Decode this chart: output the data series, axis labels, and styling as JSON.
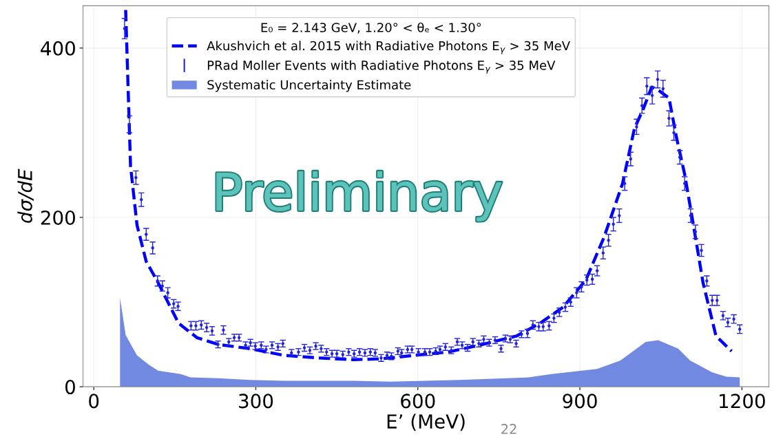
{
  "chart_data": {
    "type": "scatter",
    "xlabel": "E’ (MeV)",
    "ylabel": "dσ/dE",
    "legend_title": "E₀ = 2.143 GeV, 1.20° < θₑ < 1.30°",
    "xlim": [
      -20,
      1250
    ],
    "ylim": [
      0,
      450
    ],
    "xticks": [
      0,
      300,
      600,
      900,
      1200
    ],
    "yticks": [
      0,
      200,
      400
    ],
    "grid": true,
    "legend": "top",
    "series": [
      {
        "name": "Akushvich et al. 2015 with Radiative Photons E$_{γ}$ > 35 MeV",
        "type": "line",
        "color": "#0000ff",
        "line_style": "dashed",
        "marker": "none",
        "x": [
          59,
          68,
          80,
          97,
          119,
          157,
          191,
          230,
          289,
          353,
          417,
          481,
          532,
          592,
          656,
          720,
          783,
          826,
          869,
          911,
          945,
          979,
          1001,
          1018,
          1033,
          1048,
          1065,
          1079,
          1094,
          1111,
          1128,
          1152,
          1181
        ],
        "values": [
          445,
          261,
          191,
          148,
          123,
          75,
          58,
          50,
          45,
          37,
          34,
          32,
          33,
          37,
          41,
          50,
          60,
          75,
          94,
          126,
          177,
          240,
          305,
          329,
          354,
          349,
          341,
          294,
          251,
          188,
          123,
          60,
          42
        ]
      },
      {
        "name": "PRad Moller Events with Radiative Photons E$_{γ}$ > 35 MeV",
        "color": "#2222dd",
        "marker": "circle",
        "x": [
          57,
          66,
          78,
          88,
          97,
          109,
          118,
          127,
          137,
          148,
          156,
          180,
          189,
          199,
          209,
          219,
          230,
          240,
          250,
          260,
          269,
          281,
          290,
          299,
          310,
          319,
          330,
          341,
          350,
          366,
          379,
          390,
          400,
          411,
          421,
          431,
          441,
          450,
          461,
          472,
          482,
          492,
          502,
          512,
          521,
          532,
          543,
          551,
          563,
          570,
          581,
          589,
          601,
          613,
          622,
          633,
          641,
          651,
          662,
          673,
          682,
          692,
          702,
          713,
          722,
          732,
          743,
          754,
          762,
          771,
          782,
          792,
          803,
          813,
          824,
          832,
          843,
          852,
          862,
          873,
          883,
          894,
          903,
          913,
          923,
          932,
          943,
          953,
          962,
          973,
          983,
          994,
          1005,
          1015,
          1024,
          1034,
          1044,
          1054,
          1065,
          1074,
          1085,
          1094,
          1105,
          1114,
          1125,
          1135,
          1145,
          1154,
          1165,
          1174,
          1185,
          1196
        ],
        "values": [
          423,
          310,
          247,
          221,
          180,
          164,
          125,
          119,
          111,
          98,
          95,
          72,
          72,
          73,
          70,
          66,
          50,
          67,
          53,
          58,
          58,
          49,
          52,
          48,
          49,
          44,
          49,
          47,
          51,
          40,
          41,
          46,
          43,
          48,
          45,
          41,
          39,
          39,
          38,
          41,
          39,
          41,
          40,
          41,
          40,
          34,
          37,
          36,
          42,
          40,
          44,
          44,
          41,
          41,
          41,
          42,
          44,
          47,
          43,
          53,
          49,
          46,
          53,
          51,
          56,
          52,
          55,
          45,
          57,
          56,
          51,
          62,
          63,
          73,
          71,
          71,
          72,
          81,
          88,
          94,
          100,
          111,
          118,
          126,
          127,
          137,
          158,
          173,
          192,
          202,
          240,
          269,
          307,
          332,
          355,
          344,
          363,
          352,
          317,
          300,
          271,
          240,
          202,
          183,
          161,
          125,
          102,
          102,
          84,
          76,
          80,
          68
        ],
        "errors": [
          12,
          10,
          8,
          8,
          7,
          7,
          6,
          6,
          6,
          5,
          5,
          5,
          5,
          5,
          5,
          5,
          4,
          5,
          4,
          4,
          4,
          4,
          4,
          4,
          4,
          4,
          4,
          4,
          4,
          4,
          4,
          4,
          4,
          4,
          4,
          4,
          4,
          4,
          4,
          4,
          4,
          4,
          4,
          4,
          4,
          4,
          4,
          4,
          4,
          4,
          4,
          4,
          4,
          4,
          4,
          4,
          4,
          4,
          4,
          4,
          4,
          4,
          4,
          4,
          4,
          4,
          4,
          4,
          4,
          4,
          4,
          4,
          5,
          5,
          5,
          5,
          5,
          5,
          5,
          5,
          5,
          6,
          6,
          6,
          6,
          6,
          7,
          7,
          8,
          8,
          8,
          8,
          9,
          9,
          10,
          10,
          10,
          10,
          9,
          9,
          8,
          8,
          8,
          8,
          7,
          6,
          6,
          6,
          5,
          5,
          5,
          5
        ]
      },
      {
        "name": "Systematic Uncertainty Estimate",
        "type": "area",
        "color": "#7189e0",
        "x": [
          48.6,
          59,
          80,
          102,
          119,
          161,
          179,
          230,
          289,
          353,
          417,
          481,
          549,
          677,
          805,
          847,
          932,
          975,
          1022,
          1045,
          1082,
          1104,
          1145,
          1171,
          1196
        ],
        "values": [
          105,
          61,
          37,
          26,
          19,
          15,
          11,
          10,
          8,
          7,
          7,
          7,
          6,
          8,
          11,
          15,
          21,
          31,
          53,
          55,
          45,
          31,
          17,
          12,
          11
        ]
      }
    ],
    "annotations": [
      "Preliminary",
      "22"
    ]
  }
}
